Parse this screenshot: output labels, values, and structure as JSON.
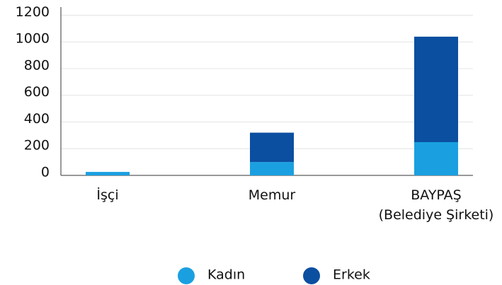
{
  "chart_data": {
    "type": "stacked_bar",
    "categories": [
      "İşçi",
      "Memur",
      "BAYPAŞ\n(Belediye Şirketi)"
    ],
    "series": [
      {
        "name": "Kadın",
        "color": "#1aa0e0",
        "values": [
          26,
          100,
          249
        ]
      },
      {
        "name": "Erkek",
        "color": "#0b4fa0",
        "values": [
          0,
          220,
          790
        ]
      }
    ],
    "ylim": [
      0,
      1250
    ],
    "yticks": [
      0,
      200,
      400,
      600,
      800,
      1000,
      1200
    ],
    "grid": true,
    "legend": "bottom"
  }
}
